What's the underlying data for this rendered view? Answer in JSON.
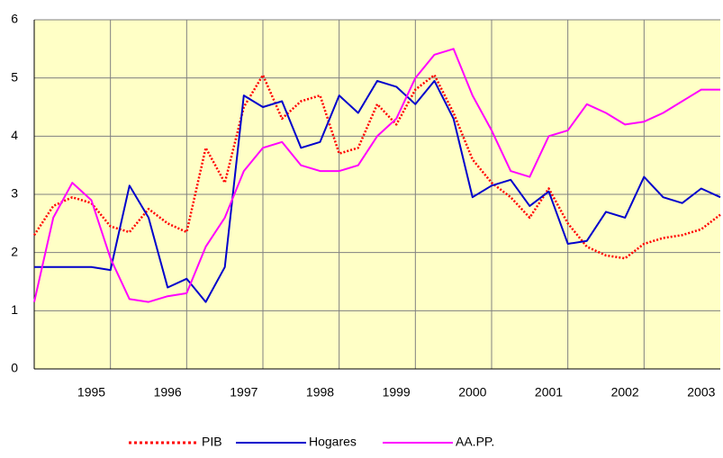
{
  "chart_data": {
    "type": "line",
    "categories": [
      null,
      null,
      null,
      "1995",
      null,
      null,
      null,
      "1996",
      null,
      null,
      null,
      "1997",
      null,
      null,
      null,
      "1998",
      null,
      null,
      null,
      "1999",
      null,
      null,
      null,
      "2000",
      null,
      null,
      null,
      "2001",
      null,
      null,
      null,
      "2002",
      null,
      null,
      null,
      "2003",
      null
    ],
    "series": [
      {
        "name": "PIB",
        "color": "#ff0000",
        "dash": "dotted",
        "values": [
          2.3,
          2.8,
          2.95,
          2.85,
          2.45,
          2.35,
          2.75,
          2.5,
          2.35,
          3.8,
          3.2,
          4.5,
          5.05,
          4.3,
          4.6,
          4.7,
          3.7,
          3.8,
          4.55,
          4.2,
          4.8,
          5.05,
          4.4,
          3.6,
          3.2,
          2.95,
          2.6,
          3.1,
          2.5,
          2.1,
          1.95,
          1.9,
          2.15,
          2.25,
          2.3,
          2.4,
          2.65
        ]
      },
      {
        "name": "Hogares",
        "color": "#0000cc",
        "values": [
          1.75,
          1.75,
          1.75,
          1.75,
          1.7,
          3.15,
          2.6,
          1.4,
          1.55,
          1.15,
          1.75,
          4.7,
          4.5,
          4.6,
          3.8,
          3.9,
          4.7,
          4.4,
          4.95,
          4.85,
          4.55,
          4.95,
          4.3,
          2.95,
          3.15,
          3.25,
          2.8,
          3.05,
          2.15,
          2.2,
          2.7,
          2.6,
          3.3,
          2.95,
          2.85,
          3.1,
          2.95
        ]
      },
      {
        "name": "AA.PP.",
        "color": "#ff00ff",
        "values": [
          1.15,
          2.6,
          3.2,
          2.9,
          1.9,
          1.2,
          1.15,
          1.25,
          1.3,
          2.1,
          2.6,
          3.4,
          3.8,
          3.9,
          3.5,
          3.4,
          3.4,
          3.5,
          4.0,
          4.3,
          5.0,
          5.4,
          5.5,
          4.7,
          4.1,
          3.4,
          3.3,
          4.0,
          4.1,
          4.55,
          4.4,
          4.2,
          4.25,
          4.4,
          4.6,
          4.8,
          4.8
        ]
      }
    ],
    "ylim": [
      0,
      6
    ],
    "yticks": [
      0,
      1,
      2,
      3,
      4,
      5,
      6
    ],
    "grid": true,
    "legend": "bottom"
  }
}
